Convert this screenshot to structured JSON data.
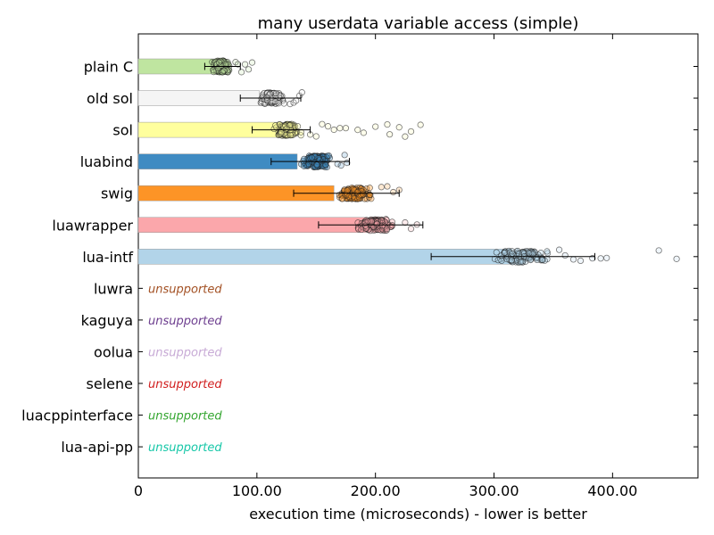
{
  "chart_data": {
    "type": "bar",
    "orientation": "horizontal",
    "title": "many userdata variable access (simple)",
    "xlabel": "execution time (microseconds) - lower is better",
    "ylabel": "",
    "xlim": [
      0,
      472
    ],
    "xticks": [
      0,
      100,
      200,
      300,
      400
    ],
    "xtick_labels": [
      "0",
      "100.00",
      "200.00",
      "300.00",
      "400.00"
    ],
    "grid": false,
    "legend": "none",
    "unsupported_label": "unsupported",
    "categories": [
      "plain C",
      "old sol",
      "sol",
      "luabind",
      "swig",
      "luawrapper",
      "lua-intf",
      "luwra",
      "kaguya",
      "oolua",
      "selene",
      "luacppinterface",
      "lua-api-pp"
    ],
    "bars": [
      {
        "name": "plain C",
        "value": 71,
        "error_low": 56,
        "error_high": 86,
        "color": "#bfe5a0",
        "supported": true,
        "cloud_min": 60,
        "cloud_max": 80,
        "outliers": [
          82,
          84,
          87,
          90,
          93,
          96
        ]
      },
      {
        "name": "old sol",
        "value": 102,
        "error_low": 86,
        "error_high": 137,
        "color": "#f5f5f5",
        "supported": true,
        "cloud_min": 100,
        "cloud_max": 125,
        "outliers": [
          128,
          131,
          133,
          136,
          138
        ]
      },
      {
        "name": "sol",
        "value": 120,
        "error_low": 96,
        "error_high": 145,
        "color": "#ffff9e",
        "supported": true,
        "cloud_min": 112,
        "cloud_max": 140,
        "outliers": [
          145,
          150,
          155,
          160,
          165,
          170,
          175,
          185,
          190,
          200,
          210,
          212,
          220,
          225,
          230,
          238
        ]
      },
      {
        "name": "luabind",
        "value": 134,
        "error_low": 112,
        "error_high": 178,
        "color": "#3f8bc2",
        "supported": true,
        "cloud_min": 135,
        "cloud_max": 165,
        "outliers": [
          168,
          171,
          174,
          176
        ]
      },
      {
        "name": "swig",
        "value": 165,
        "error_low": 131,
        "error_high": 220,
        "color": "#fd9426",
        "supported": true,
        "cloud_min": 163,
        "cloud_max": 200,
        "outliers": [
          205,
          210,
          215,
          220
        ]
      },
      {
        "name": "luawrapper",
        "value": 193,
        "error_low": 152,
        "error_high": 240,
        "color": "#fba7ab",
        "supported": true,
        "cloud_min": 180,
        "cloud_max": 220,
        "outliers": [
          225,
          230,
          235
        ]
      },
      {
        "name": "lua-intf",
        "value": 315,
        "error_low": 247,
        "error_high": 385,
        "color": "#b2d4e9",
        "supported": true,
        "cloud_min": 295,
        "cloud_max": 350,
        "outliers": [
          355,
          360,
          367,
          373,
          383,
          390,
          395,
          439,
          454
        ]
      },
      {
        "name": "luwra",
        "value": null,
        "color": "#a35124",
        "supported": false
      },
      {
        "name": "kaguya",
        "value": null,
        "color": "#6d3e8f",
        "supported": false
      },
      {
        "name": "oolua",
        "value": null,
        "color": "#c8abd6",
        "supported": false
      },
      {
        "name": "selene",
        "value": null,
        "color": "#d11f1f",
        "supported": false
      },
      {
        "name": "luacppinterface",
        "value": null,
        "color": "#35a631",
        "supported": false
      },
      {
        "name": "lua-api-pp",
        "value": null,
        "color": "#17c7a8",
        "supported": false
      }
    ]
  }
}
